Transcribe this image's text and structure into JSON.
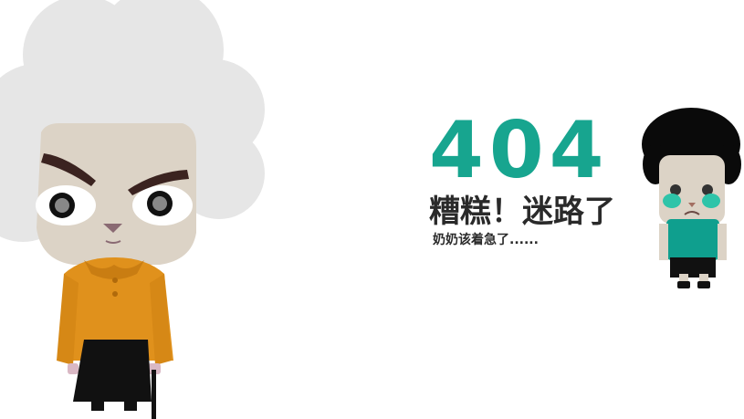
{
  "error": {
    "code": "404",
    "headline": "糟糕！迷路了",
    "subtext": "奶奶该着急了......"
  },
  "colors": {
    "accent": "#17a58f",
    "text": "#2a2a2a",
    "hair": "#e5e5e5",
    "skin": "#dcd3c6",
    "sweater": "#e0911c",
    "skirt": "#111111",
    "boy_shirt": "#0f9f8e",
    "boy_hair": "#0a0a0a"
  },
  "illustrations": {
    "grandma": "grandma-character",
    "boy": "crying-boy-character"
  }
}
